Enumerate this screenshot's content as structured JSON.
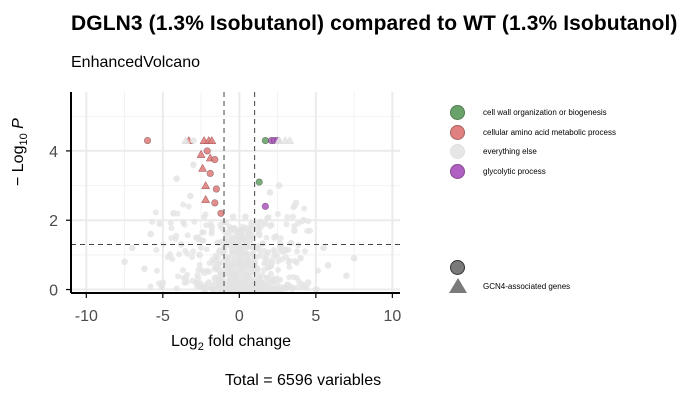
{
  "chart_data": {
    "type": "scatter",
    "title": "DGLN3  (1.3% Isobutanol)  compared to WT  (1.3% Isobutanol)",
    "subtitle": "EnhancedVolcano",
    "xlabel": "Log2 fold change",
    "xlabel_main": "Log",
    "xlabel_sub": "2",
    "xlabel_rest": " fold change",
    "ylabel_prefix": "− Log",
    "ylabel_sub": "10",
    "ylabel_suffix": " P",
    "caption": "Total = 6596 variables",
    "xlim": [
      -11,
      10.5
    ],
    "ylim": [
      -0.1,
      5.7
    ],
    "x_ticks": [
      -10,
      -5,
      0,
      5,
      10
    ],
    "y_ticks": [
      0,
      2,
      4
    ],
    "grid": true,
    "fc_cutoffs": [
      -1,
      1
    ],
    "p_cutoff": 1.3,
    "legend_position": "right",
    "colors": {
      "cell_wall": "#6aa36a",
      "amino_acid": "#e08080",
      "everything_else": "#e6e6e6",
      "glycolytic": "#b060c0",
      "shape": "#7a7a7a"
    },
    "legend": {
      "color_entries": [
        {
          "label": "cell wall organization or biogenesis",
          "color": "#6aa36a"
        },
        {
          "label": "cellular amino acid metabolic process",
          "color": "#e08080"
        },
        {
          "label": "everything else",
          "color": "#e6e6e6"
        },
        {
          "label": "glycolytic process",
          "color": "#b060c0"
        }
      ],
      "shape_label": "GCN4-associated genes"
    },
    "series": [
      {
        "name": "cell wall organization or biogenesis",
        "color": "#6aa36a",
        "points": [
          {
            "x": 1.7,
            "y": 4.3,
            "shape": "circle"
          },
          {
            "x": 1.3,
            "y": 3.1,
            "shape": "circle"
          }
        ]
      },
      {
        "name": "cellular amino acid metabolic process",
        "color": "#e08080",
        "points": [
          {
            "x": -6.0,
            "y": 4.3,
            "shape": "circle"
          },
          {
            "x": -3.3,
            "y": 4.3,
            "shape": "triangle"
          },
          {
            "x": -2.3,
            "y": 4.3,
            "shape": "triangle"
          },
          {
            "x": -2.0,
            "y": 4.3,
            "shape": "triangle"
          },
          {
            "x": -1.8,
            "y": 4.3,
            "shape": "triangle"
          },
          {
            "x": -2.1,
            "y": 4.0,
            "shape": "circle"
          },
          {
            "x": -2.5,
            "y": 3.9,
            "shape": "triangle"
          },
          {
            "x": -1.9,
            "y": 3.8,
            "shape": "triangle"
          },
          {
            "x": -1.6,
            "y": 3.75,
            "shape": "circle"
          },
          {
            "x": -2.4,
            "y": 3.5,
            "shape": "triangle"
          },
          {
            "x": -1.9,
            "y": 3.35,
            "shape": "circle"
          },
          {
            "x": -2.2,
            "y": 3.0,
            "shape": "triangle"
          },
          {
            "x": -1.5,
            "y": 2.9,
            "shape": "circle"
          },
          {
            "x": -2.2,
            "y": 2.6,
            "shape": "triangle"
          },
          {
            "x": -1.6,
            "y": 2.5,
            "shape": "circle"
          },
          {
            "x": -1.2,
            "y": 2.2,
            "shape": "circle"
          }
        ]
      },
      {
        "name": "glycolytic process",
        "color": "#b060c0",
        "points": [
          {
            "x": 2.1,
            "y": 4.3,
            "shape": "circle"
          },
          {
            "x": 2.3,
            "y": 4.3,
            "shape": "circle"
          },
          {
            "x": 2.5,
            "y": 4.3,
            "shape": "circle"
          },
          {
            "x": 1.7,
            "y": 2.4,
            "shape": "circle"
          }
        ]
      },
      {
        "name": "everything else",
        "color": "#e6e6e6",
        "points": [
          {
            "x": -3.5,
            "y": 4.3,
            "shape": "triangle"
          },
          {
            "x": -3.0,
            "y": 4.3,
            "shape": "circle"
          },
          {
            "x": 2.6,
            "y": 4.3,
            "shape": "triangle"
          },
          {
            "x": 3.0,
            "y": 4.3,
            "shape": "triangle"
          },
          {
            "x": 3.3,
            "y": 4.3,
            "shape": "triangle"
          },
          {
            "x": -3.0,
            "y": 3.6,
            "shape": "circle"
          },
          {
            "x": -4.1,
            "y": 3.2,
            "shape": "circle"
          },
          {
            "x": -3.2,
            "y": 2.7,
            "shape": "circle"
          },
          {
            "x": 2.0,
            "y": 2.8,
            "shape": "circle"
          },
          {
            "x": 2.6,
            "y": 3.0,
            "shape": "circle"
          },
          {
            "x": 3.7,
            "y": 2.5,
            "shape": "circle"
          },
          {
            "x": 4.2,
            "y": 2.0,
            "shape": "circle"
          },
          {
            "x": 3.6,
            "y": 1.7,
            "shape": "circle"
          },
          {
            "x": -4.3,
            "y": 2.2,
            "shape": "circle"
          },
          {
            "x": -5.2,
            "y": 1.9,
            "shape": "circle"
          },
          {
            "x": -5.8,
            "y": 1.6,
            "shape": "circle"
          },
          {
            "x": -7.0,
            "y": 1.2,
            "shape": "circle"
          },
          {
            "x": -7.5,
            "y": 0.8,
            "shape": "circle"
          },
          {
            "x": -6.2,
            "y": 0.6,
            "shape": "circle"
          },
          {
            "x": -3.8,
            "y": 1.3,
            "shape": "circle"
          },
          {
            "x": -2.7,
            "y": 1.5,
            "shape": "circle"
          },
          {
            "x": -1.8,
            "y": 1.8,
            "shape": "circle"
          },
          {
            "x": -1.3,
            "y": 1.1,
            "shape": "circle"
          },
          {
            "x": -0.8,
            "y": 1.6,
            "shape": "circle"
          },
          {
            "x": -0.5,
            "y": 1.2,
            "shape": "circle"
          },
          {
            "x": -0.3,
            "y": 0.9,
            "shape": "circle"
          },
          {
            "x": -0.2,
            "y": 0.6,
            "shape": "circle"
          },
          {
            "x": 0.1,
            "y": 0.4,
            "shape": "circle"
          },
          {
            "x": 0.3,
            "y": 0.9,
            "shape": "circle"
          },
          {
            "x": 0.6,
            "y": 1.4,
            "shape": "circle"
          },
          {
            "x": 0.8,
            "y": 1.9,
            "shape": "circle"
          },
          {
            "x": 1.0,
            "y": 1.2,
            "shape": "circle"
          },
          {
            "x": 1.3,
            "y": 1.6,
            "shape": "circle"
          },
          {
            "x": 1.7,
            "y": 1.9,
            "shape": "circle"
          },
          {
            "x": 2.3,
            "y": 1.5,
            "shape": "circle"
          },
          {
            "x": 2.9,
            "y": 1.1,
            "shape": "circle"
          },
          {
            "x": 4.0,
            "y": 0.9,
            "shape": "circle"
          },
          {
            "x": 5.5,
            "y": 1.2,
            "shape": "circle"
          },
          {
            "x": 5.8,
            "y": 0.7,
            "shape": "circle"
          },
          {
            "x": 7.0,
            "y": 0.4,
            "shape": "circle"
          },
          {
            "x": 7.5,
            "y": 0.9,
            "shape": "circle"
          },
          {
            "x": -3.5,
            "y": 0.3,
            "shape": "circle"
          },
          {
            "x": -2.0,
            "y": 0.2,
            "shape": "circle"
          },
          {
            "x": 2.5,
            "y": 0.3,
            "shape": "circle"
          },
          {
            "x": 4.5,
            "y": 0.2,
            "shape": "circle"
          },
          {
            "x": -5.0,
            "y": 0.2,
            "shape": "circle"
          },
          {
            "x": -0.4,
            "y": 2.1,
            "shape": "circle"
          },
          {
            "x": 0.4,
            "y": 2.1,
            "shape": "circle"
          },
          {
            "x": -2.6,
            "y": 1.0,
            "shape": "circle"
          },
          {
            "x": 2.1,
            "y": 0.8,
            "shape": "circle"
          }
        ]
      }
    ]
  }
}
